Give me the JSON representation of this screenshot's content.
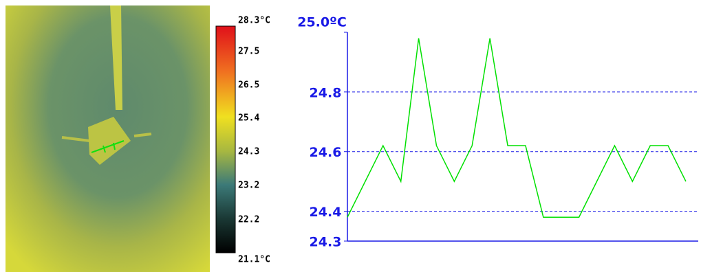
{
  "colorbar": {
    "ticks": [
      "28.3°C",
      "27.5",
      "26.5",
      "25.4",
      "24.3",
      "23.2",
      "22.2",
      "21.1°C"
    ]
  },
  "chart_data": {
    "type": "line",
    "categories": [
      null,
      null,
      null,
      null,
      null,
      null,
      null,
      null,
      null,
      null,
      null,
      null,
      null,
      null,
      null,
      null,
      null,
      null,
      null,
      null
    ],
    "series": [
      {
        "color": "#00e000",
        "values": [
          24.38,
          24.5,
          24.62,
          24.5,
          24.98,
          24.62,
          24.5,
          24.62,
          24.98,
          24.62,
          24.62,
          24.38,
          24.38,
          24.38,
          24.5,
          24.62,
          24.5,
          24.62,
          24.62,
          24.5
        ]
      }
    ],
    "ylim": [
      24.3,
      25.0
    ],
    "yticks": [
      24.3,
      24.4,
      24.6,
      24.8,
      {
        "value": 25.0,
        "label": "25.0ºC"
      }
    ],
    "grid": true
  }
}
